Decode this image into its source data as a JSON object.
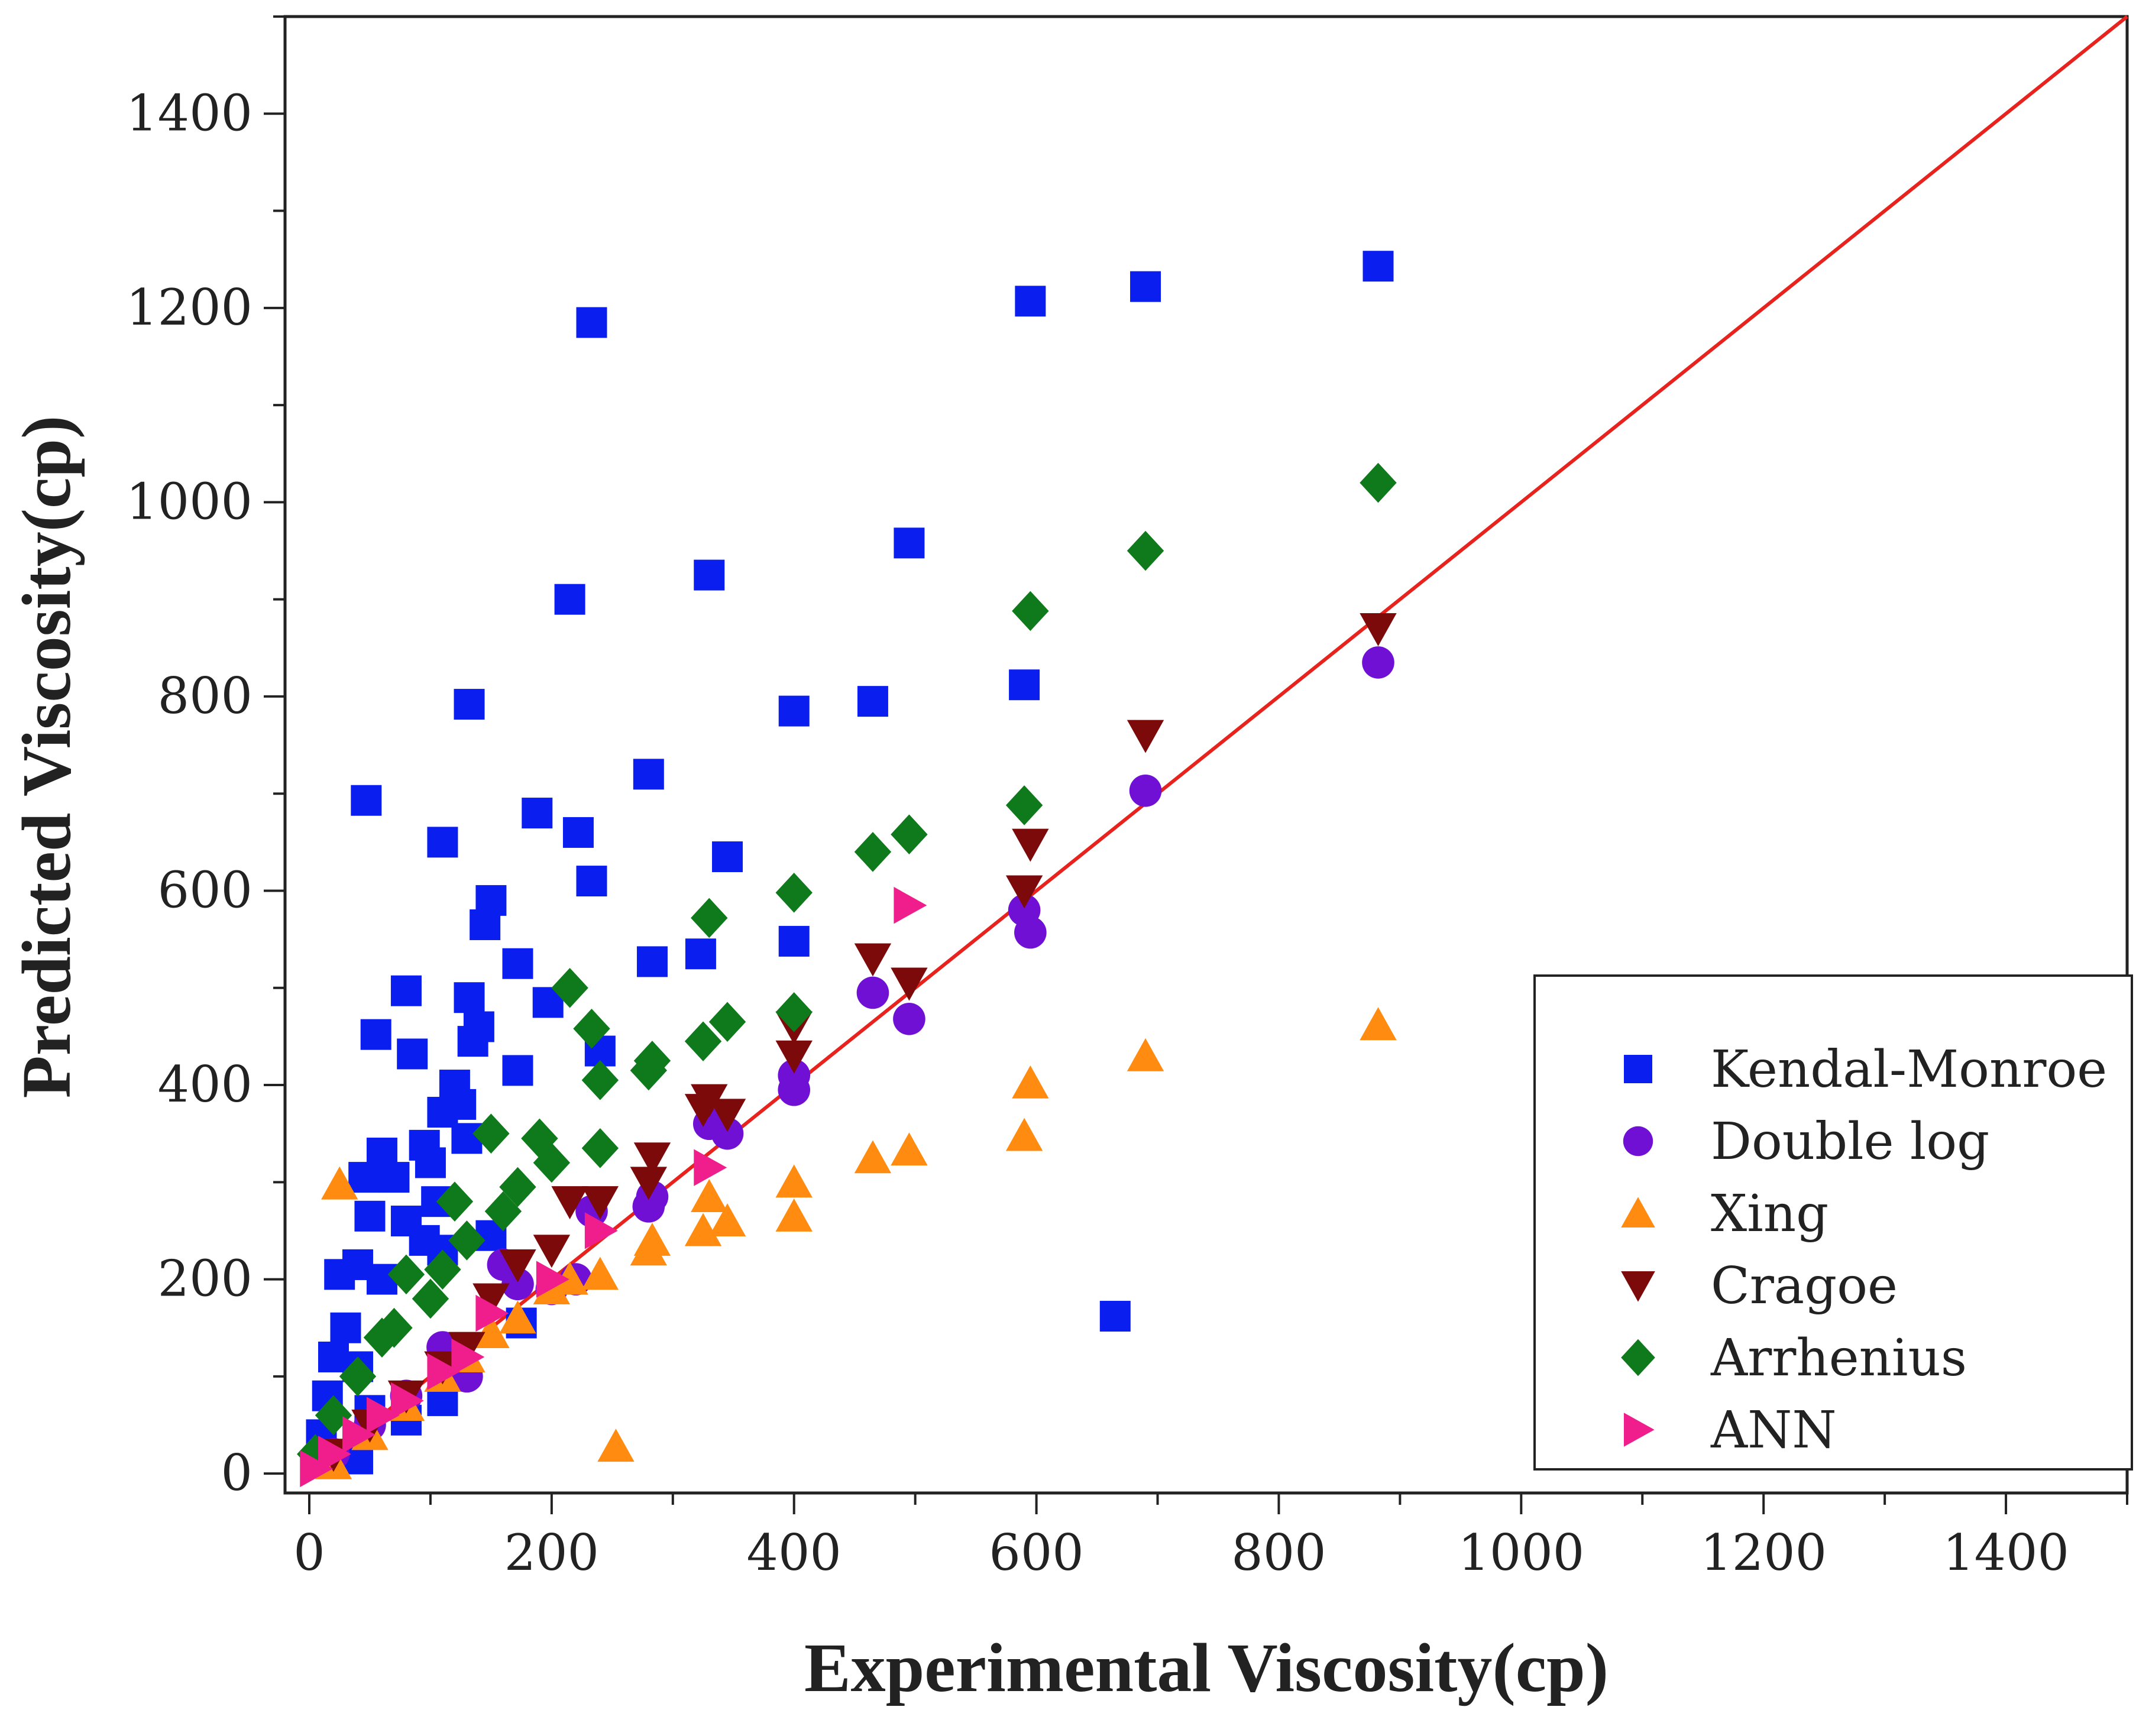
{
  "chart_data": {
    "type": "scatter",
    "title": "",
    "xlabel": "Experimental Viscosity(cp)",
    "ylabel": "Predicted Viscosity(cp)",
    "xlim": [
      -20,
      1500
    ],
    "ylim": [
      -20,
      1500
    ],
    "xticks": [
      0,
      200,
      400,
      600,
      800,
      1000,
      1200,
      1400
    ],
    "yticks": [
      0,
      200,
      400,
      600,
      800,
      1000,
      1200,
      1400
    ],
    "reference_line": {
      "name": "y = x",
      "color": "#e8221c",
      "from": [
        0,
        0
      ],
      "to": [
        1500,
        1500
      ]
    },
    "legend_position": "bottom-right",
    "series": [
      {
        "name": "Kendal-Monroe",
        "marker": "square",
        "color": "#0a1ef0",
        "points": [
          [
            233,
            1185
          ],
          [
            595,
            1207
          ],
          [
            690,
            1222
          ],
          [
            882,
            1243
          ],
          [
            495,
            958
          ],
          [
            330,
            925
          ],
          [
            215,
            900
          ],
          [
            132,
            792
          ],
          [
            400,
            785
          ],
          [
            465,
            795
          ],
          [
            590,
            812
          ],
          [
            280,
            720
          ],
          [
            47,
            693
          ],
          [
            188,
            680
          ],
          [
            222,
            660
          ],
          [
            110,
            650
          ],
          [
            345,
            635
          ],
          [
            233,
            610
          ],
          [
            150,
            590
          ],
          [
            145,
            565
          ],
          [
            400,
            548
          ],
          [
            323,
            535
          ],
          [
            283,
            527
          ],
          [
            172,
            525
          ],
          [
            132,
            490
          ],
          [
            80,
            497
          ],
          [
            197,
            485
          ],
          [
            140,
            460
          ],
          [
            135,
            445
          ],
          [
            55,
            452
          ],
          [
            85,
            432
          ],
          [
            240,
            435
          ],
          [
            172,
            415
          ],
          [
            120,
            400
          ],
          [
            110,
            372
          ],
          [
            125,
            380
          ],
          [
            95,
            338
          ],
          [
            60,
            330
          ],
          [
            130,
            345
          ],
          [
            100,
            320
          ],
          [
            70,
            305
          ],
          [
            45,
            305
          ],
          [
            50,
            265
          ],
          [
            80,
            260
          ],
          [
            105,
            280
          ],
          [
            95,
            240
          ],
          [
            25,
            205
          ],
          [
            40,
            215
          ],
          [
            60,
            200
          ],
          [
            110,
            230
          ],
          [
            150,
            245
          ],
          [
            175,
            155
          ],
          [
            30,
            150
          ],
          [
            20,
            120
          ],
          [
            40,
            110
          ],
          [
            15,
            80
          ],
          [
            50,
            65
          ],
          [
            80,
            55
          ],
          [
            110,
            75
          ],
          [
            10,
            40
          ],
          [
            40,
            15
          ],
          [
            665,
            162
          ]
        ]
      },
      {
        "name": "Double log",
        "marker": "circle",
        "color": "#7010d4",
        "points": [
          [
            882,
            835
          ],
          [
            690,
            703
          ],
          [
            595,
            557
          ],
          [
            590,
            580
          ],
          [
            495,
            468
          ],
          [
            465,
            495
          ],
          [
            400,
            410
          ],
          [
            400,
            395
          ],
          [
            345,
            350
          ],
          [
            330,
            360
          ],
          [
            283,
            285
          ],
          [
            280,
            275
          ],
          [
            233,
            270
          ],
          [
            220,
            200
          ],
          [
            200,
            190
          ],
          [
            172,
            195
          ],
          [
            160,
            215
          ],
          [
            130,
            100
          ],
          [
            110,
            130
          ],
          [
            80,
            80
          ],
          [
            50,
            50
          ],
          [
            20,
            20
          ]
        ]
      },
      {
        "name": "Xing",
        "marker": "triangle-up",
        "color": "#ff8c10",
        "points": [
          [
            882,
            462
          ],
          [
            690,
            430
          ],
          [
            595,
            402
          ],
          [
            590,
            348
          ],
          [
            495,
            333
          ],
          [
            465,
            325
          ],
          [
            400,
            300
          ],
          [
            400,
            265
          ],
          [
            345,
            260
          ],
          [
            330,
            285
          ],
          [
            325,
            250
          ],
          [
            283,
            240
          ],
          [
            280,
            230
          ],
          [
            240,
            205
          ],
          [
            215,
            200
          ],
          [
            200,
            190
          ],
          [
            172,
            160
          ],
          [
            150,
            145
          ],
          [
            130,
            120
          ],
          [
            110,
            100
          ],
          [
            80,
            70
          ],
          [
            50,
            40
          ],
          [
            20,
            10
          ],
          [
            25,
            298
          ],
          [
            253,
            28
          ]
        ]
      },
      {
        "name": "Cragoe",
        "marker": "triangle-down",
        "color": "#7c0a0a",
        "points": [
          [
            882,
            870
          ],
          [
            690,
            760
          ],
          [
            595,
            648
          ],
          [
            590,
            600
          ],
          [
            495,
            505
          ],
          [
            465,
            530
          ],
          [
            400,
            460
          ],
          [
            400,
            430
          ],
          [
            345,
            370
          ],
          [
            330,
            385
          ],
          [
            325,
            375
          ],
          [
            283,
            325
          ],
          [
            280,
            300
          ],
          [
            240,
            280
          ],
          [
            215,
            280
          ],
          [
            200,
            230
          ],
          [
            172,
            215
          ],
          [
            150,
            180
          ],
          [
            130,
            130
          ],
          [
            110,
            110
          ],
          [
            80,
            80
          ],
          [
            50,
            50
          ],
          [
            20,
            20
          ]
        ]
      },
      {
        "name": "Arrhenius",
        "marker": "diamond",
        "color": "#0f7a1c",
        "points": [
          [
            882,
            1020
          ],
          [
            690,
            950
          ],
          [
            595,
            888
          ],
          [
            590,
            688
          ],
          [
            495,
            658
          ],
          [
            465,
            640
          ],
          [
            400,
            598
          ],
          [
            400,
            475
          ],
          [
            345,
            465
          ],
          [
            330,
            572
          ],
          [
            325,
            445
          ],
          [
            283,
            425
          ],
          [
            280,
            415
          ],
          [
            240,
            405
          ],
          [
            233,
            458
          ],
          [
            215,
            500
          ],
          [
            240,
            335
          ],
          [
            200,
            320
          ],
          [
            190,
            345
          ],
          [
            172,
            295
          ],
          [
            150,
            350
          ],
          [
            160,
            270
          ],
          [
            130,
            240
          ],
          [
            120,
            280
          ],
          [
            110,
            210
          ],
          [
            80,
            205
          ],
          [
            100,
            180
          ],
          [
            70,
            150
          ],
          [
            60,
            140
          ],
          [
            40,
            100
          ],
          [
            20,
            60
          ],
          [
            5,
            20
          ]
        ]
      },
      {
        "name": "ANN",
        "marker": "triangle-right",
        "color": "#f01e8c",
        "points": [
          [
            495,
            585
          ],
          [
            330,
            315
          ],
          [
            240,
            250
          ],
          [
            200,
            200
          ],
          [
            150,
            165
          ],
          [
            130,
            120
          ],
          [
            110,
            105
          ],
          [
            80,
            75
          ],
          [
            60,
            60
          ],
          [
            40,
            40
          ],
          [
            20,
            20
          ],
          [
            5,
            5
          ]
        ]
      }
    ]
  }
}
